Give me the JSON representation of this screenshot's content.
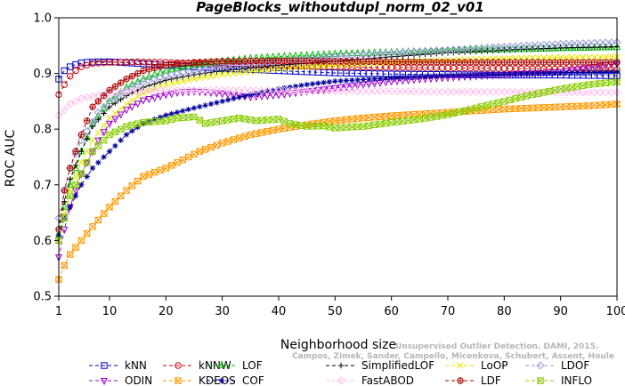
{
  "chart_data": {
    "type": "line",
    "title": "PageBlocks_withoutdupl_norm_02_v01",
    "xlabel": "Neighborhood size",
    "ylabel": "ROC AUC",
    "xlim": [
      1,
      100
    ],
    "ylim": [
      0.5,
      1.0
    ],
    "xticks": [
      1,
      10,
      20,
      30,
      40,
      50,
      60,
      70,
      80,
      90,
      100
    ],
    "yticks": [
      0.5,
      0.6,
      0.7,
      0.8,
      0.9,
      1.0
    ],
    "ytick_labels": [
      "0.5",
      "0.6",
      "0.7",
      "0.8",
      "0.9",
      "1.0"
    ],
    "grid": false,
    "legend_position": "bottom",
    "watermark": [
      "Unsupervised Outlier Detection. DAMI, 2015.",
      "Campos, Zimek, Sander, Campello, Micenkova, Schubert, Assent, Houle"
    ],
    "series": [
      {
        "name": "kNN",
        "color": "#0000cc",
        "marker": "square",
        "points": [
          [
            1,
            0.89
          ],
          [
            2,
            0.905
          ],
          [
            3,
            0.912
          ],
          [
            4,
            0.916
          ],
          [
            5,
            0.919
          ],
          [
            6,
            0.92
          ],
          [
            8,
            0.921
          ],
          [
            10,
            0.921
          ],
          [
            15,
            0.918
          ],
          [
            20,
            0.915
          ],
          [
            25,
            0.912
          ],
          [
            30,
            0.909
          ],
          [
            40,
            0.905
          ],
          [
            50,
            0.901
          ],
          [
            60,
            0.899
          ],
          [
            70,
            0.898
          ],
          [
            80,
            0.897
          ],
          [
            90,
            0.897
          ],
          [
            100,
            0.896
          ]
        ]
      },
      {
        "name": "kNNW",
        "color": "#cc0000",
        "marker": "circle",
        "points": [
          [
            1,
            0.862
          ],
          [
            2,
            0.88
          ],
          [
            3,
            0.895
          ],
          [
            4,
            0.905
          ],
          [
            5,
            0.912
          ],
          [
            7,
            0.918
          ],
          [
            10,
            0.92
          ],
          [
            15,
            0.921
          ],
          [
            20,
            0.92
          ],
          [
            30,
            0.917
          ],
          [
            40,
            0.914
          ],
          [
            50,
            0.912
          ],
          [
            60,
            0.911
          ],
          [
            70,
            0.91
          ],
          [
            80,
            0.909
          ],
          [
            90,
            0.908
          ],
          [
            100,
            0.907
          ]
        ]
      },
      {
        "name": "LOF",
        "color": "#00bb00",
        "marker": "triangle",
        "points": [
          [
            1,
            0.61
          ],
          [
            2,
            0.66
          ],
          [
            3,
            0.7
          ],
          [
            5,
            0.76
          ],
          [
            7,
            0.81
          ],
          [
            10,
            0.85
          ],
          [
            13,
            0.875
          ],
          [
            16,
            0.89
          ],
          [
            20,
            0.905
          ],
          [
            25,
            0.915
          ],
          [
            30,
            0.922
          ],
          [
            35,
            0.927
          ],
          [
            40,
            0.93
          ],
          [
            50,
            0.935
          ],
          [
            60,
            0.938
          ],
          [
            70,
            0.941
          ],
          [
            80,
            0.943
          ],
          [
            90,
            0.945
          ],
          [
            100,
            0.947
          ]
        ]
      },
      {
        "name": "SimplifiedLOF",
        "color": "#000000",
        "marker": "plus",
        "points": [
          [
            1,
            0.62
          ],
          [
            2,
            0.67
          ],
          [
            3,
            0.71
          ],
          [
            5,
            0.76
          ],
          [
            7,
            0.805
          ],
          [
            10,
            0.84
          ],
          [
            13,
            0.86
          ],
          [
            16,
            0.875
          ],
          [
            20,
            0.888
          ],
          [
            25,
            0.898
          ],
          [
            30,
            0.905
          ],
          [
            35,
            0.91
          ],
          [
            40,
            0.915
          ],
          [
            50,
            0.922
          ],
          [
            60,
            0.93
          ],
          [
            70,
            0.937
          ],
          [
            80,
            0.942
          ],
          [
            90,
            0.946
          ],
          [
            100,
            0.948
          ]
        ]
      },
      {
        "name": "LoOP",
        "color": "#e6e600",
        "marker": "x",
        "points": [
          [
            1,
            0.6
          ],
          [
            2,
            0.65
          ],
          [
            3,
            0.69
          ],
          [
            5,
            0.74
          ],
          [
            7,
            0.78
          ],
          [
            10,
            0.82
          ],
          [
            13,
            0.845
          ],
          [
            16,
            0.865
          ],
          [
            20,
            0.88
          ],
          [
            25,
            0.89
          ],
          [
            30,
            0.898
          ],
          [
            40,
            0.908
          ],
          [
            50,
            0.915
          ],
          [
            60,
            0.92
          ],
          [
            70,
            0.924
          ],
          [
            80,
            0.927
          ],
          [
            90,
            0.929
          ],
          [
            100,
            0.93
          ]
        ]
      },
      {
        "name": "LDOF",
        "color": "#9999dd",
        "marker": "diamond",
        "points": [
          [
            1,
            0.64
          ],
          [
            2,
            0.69
          ],
          [
            3,
            0.73
          ],
          [
            5,
            0.78
          ],
          [
            8,
            0.83
          ],
          [
            10,
            0.85
          ],
          [
            13,
            0.87
          ],
          [
            16,
            0.885
          ],
          [
            20,
            0.895
          ],
          [
            25,
            0.905
          ],
          [
            30,
            0.912
          ],
          [
            40,
            0.922
          ],
          [
            50,
            0.93
          ],
          [
            60,
            0.937
          ],
          [
            70,
            0.942
          ],
          [
            80,
            0.948
          ],
          [
            90,
            0.953
          ],
          [
            100,
            0.956
          ]
        ]
      },
      {
        "name": "ODIN",
        "color": "#9900cc",
        "marker": "triangle-down",
        "points": [
          [
            1,
            0.57
          ],
          [
            2,
            0.62
          ],
          [
            3,
            0.66
          ],
          [
            5,
            0.72
          ],
          [
            8,
            0.78
          ],
          [
            10,
            0.81
          ],
          [
            13,
            0.835
          ],
          [
            16,
            0.852
          ],
          [
            20,
            0.862
          ],
          [
            22,
            0.866
          ],
          [
            25,
            0.868
          ],
          [
            28,
            0.866
          ],
          [
            30,
            0.864
          ],
          [
            33,
            0.86
          ],
          [
            35,
            0.858
          ],
          [
            40,
            0.862
          ],
          [
            45,
            0.868
          ],
          [
            50,
            0.874
          ],
          [
            55,
            0.88
          ],
          [
            60,
            0.886
          ],
          [
            65,
            0.89
          ],
          [
            70,
            0.893
          ],
          [
            80,
            0.898
          ],
          [
            90,
            0.903
          ],
          [
            100,
            0.918
          ]
        ]
      },
      {
        "name": "KDEOS",
        "color": "#ff9900",
        "marker": "square-x",
        "points": [
          [
            1,
            0.53
          ],
          [
            2,
            0.555
          ],
          [
            3,
            0.575
          ],
          [
            5,
            0.6
          ],
          [
            7,
            0.625
          ],
          [
            10,
            0.66
          ],
          [
            13,
            0.69
          ],
          [
            16,
            0.715
          ],
          [
            20,
            0.73
          ],
          [
            23,
            0.745
          ],
          [
            26,
            0.76
          ],
          [
            30,
            0.775
          ],
          [
            35,
            0.79
          ],
          [
            40,
            0.8
          ],
          [
            45,
            0.808
          ],
          [
            50,
            0.815
          ],
          [
            55,
            0.82
          ],
          [
            60,
            0.824
          ],
          [
            65,
            0.827
          ],
          [
            70,
            0.83
          ],
          [
            75,
            0.833
          ],
          [
            80,
            0.836
          ],
          [
            85,
            0.838
          ],
          [
            90,
            0.84
          ],
          [
            95,
            0.842
          ],
          [
            100,
            0.845
          ]
        ]
      },
      {
        "name": "COF",
        "color": "#000099",
        "marker": "asterisk",
        "points": [
          [
            1,
            0.61
          ],
          [
            2,
            0.64
          ],
          [
            3,
            0.66
          ],
          [
            5,
            0.7
          ],
          [
            7,
            0.73
          ],
          [
            10,
            0.76
          ],
          [
            13,
            0.79
          ],
          [
            16,
            0.81
          ],
          [
            20,
            0.825
          ],
          [
            25,
            0.838
          ],
          [
            30,
            0.85
          ],
          [
            35,
            0.862
          ],
          [
            40,
            0.872
          ],
          [
            45,
            0.88
          ],
          [
            50,
            0.886
          ],
          [
            60,
            0.892
          ],
          [
            70,
            0.896
          ],
          [
            80,
            0.899
          ],
          [
            90,
            0.901
          ],
          [
            100,
            0.903
          ]
        ]
      },
      {
        "name": "FastABOD",
        "color": "#ffbbee",
        "marker": "diamond",
        "points": [
          [
            1,
            0.825
          ],
          [
            2,
            0.835
          ],
          [
            3,
            0.845
          ],
          [
            5,
            0.855
          ],
          [
            10,
            0.865
          ],
          [
            15,
            0.868
          ],
          [
            20,
            0.87
          ],
          [
            30,
            0.87
          ],
          [
            40,
            0.869
          ],
          [
            50,
            0.868
          ],
          [
            60,
            0.868
          ],
          [
            70,
            0.867
          ],
          [
            80,
            0.867
          ],
          [
            90,
            0.866
          ],
          [
            100,
            0.866
          ]
        ]
      },
      {
        "name": "LDF",
        "color": "#aa0000",
        "marker": "circle-plus",
        "points": [
          [
            1,
            0.62
          ],
          [
            2,
            0.69
          ],
          [
            3,
            0.73
          ],
          [
            5,
            0.79
          ],
          [
            7,
            0.84
          ],
          [
            10,
            0.87
          ],
          [
            13,
            0.89
          ],
          [
            16,
            0.905
          ],
          [
            20,
            0.915
          ],
          [
            25,
            0.92
          ],
          [
            30,
            0.922
          ],
          [
            40,
            0.923
          ],
          [
            50,
            0.922
          ],
          [
            60,
            0.921
          ],
          [
            70,
            0.92
          ],
          [
            80,
            0.92
          ],
          [
            90,
            0.92
          ],
          [
            100,
            0.92
          ]
        ]
      },
      {
        "name": "INFLO",
        "color": "#88cc00",
        "marker": "square-x",
        "points": [
          [
            1,
            0.6
          ],
          [
            2,
            0.64
          ],
          [
            3,
            0.68
          ],
          [
            5,
            0.72
          ],
          [
            7,
            0.76
          ],
          [
            10,
            0.79
          ],
          [
            13,
            0.805
          ],
          [
            16,
            0.812
          ],
          [
            20,
            0.815
          ],
          [
            22,
            0.82
          ],
          [
            25,
            0.822
          ],
          [
            27,
            0.81
          ],
          [
            30,
            0.815
          ],
          [
            33,
            0.82
          ],
          [
            36,
            0.815
          ],
          [
            40,
            0.818
          ],
          [
            42,
            0.81
          ],
          [
            45,
            0.805
          ],
          [
            48,
            0.806
          ],
          [
            50,
            0.802
          ],
          [
            55,
            0.805
          ],
          [
            60,
            0.812
          ],
          [
            65,
            0.818
          ],
          [
            70,
            0.826
          ],
          [
            75,
            0.838
          ],
          [
            80,
            0.85
          ],
          [
            85,
            0.862
          ],
          [
            90,
            0.872
          ],
          [
            95,
            0.88
          ],
          [
            100,
            0.885
          ]
        ]
      }
    ]
  }
}
